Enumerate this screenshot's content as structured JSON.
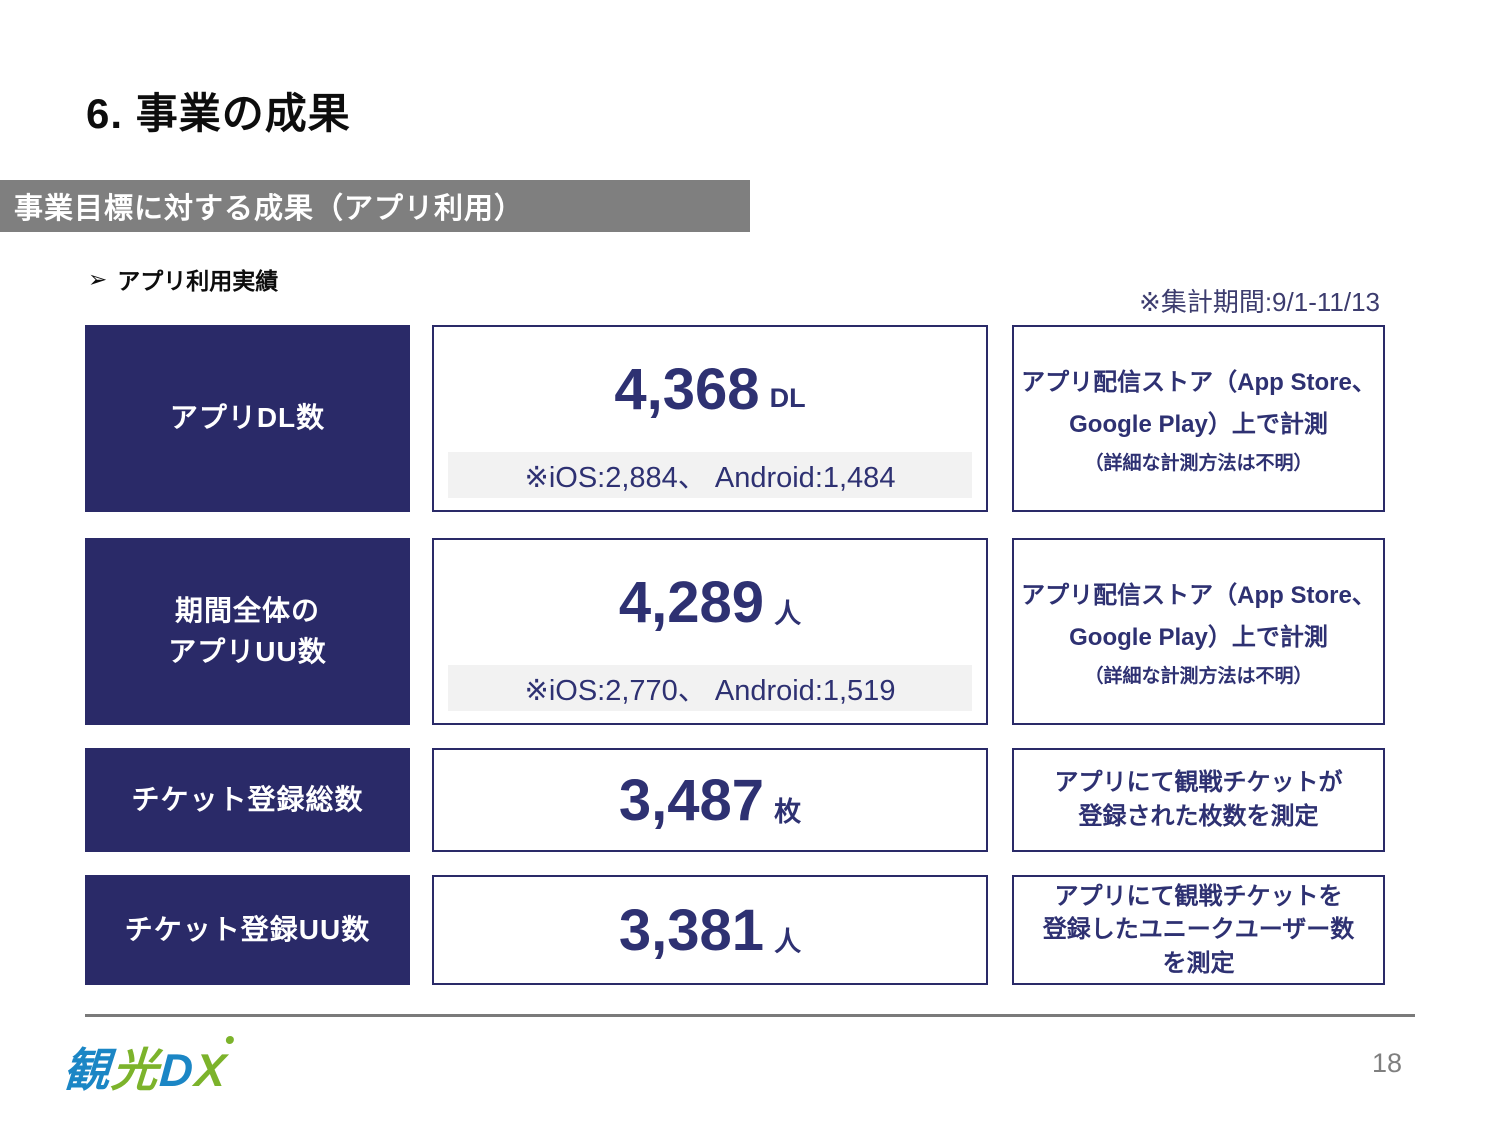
{
  "slide": {
    "title": "6. 事業の成果",
    "section_banner": "事業目標に対する成果（アプリ利用）",
    "bullet_marker": "➢",
    "bullet_label": "アプリ利用実績",
    "period_note": "※集計期間:9/1-11/13",
    "page_number": "18"
  },
  "logo": {
    "char1": "観",
    "char2": "光",
    "char3": "D",
    "char4": "X"
  },
  "colors": {
    "navy_box": "#2a2a68",
    "value_text": "#2e3172",
    "banner_gray": "#7f7f7f",
    "strip_gray": "#f2f2f2",
    "logo_blue": "#1b86c5",
    "logo_green": "#7cb32b"
  },
  "table": {
    "rows": [
      {
        "label_line1": "アプリDL数",
        "value": "4,368",
        "unit": "DL",
        "breakdown": "※iOS:2,884、 Android:1,484",
        "desc_line1": "アプリ配信ストア（App Store、",
        "desc_line2": "Google Play）上で計測",
        "desc_sub": "（詳細な計測方法は不明）"
      },
      {
        "label_line1": "期間全体の",
        "label_line2": "アプリUU数",
        "value": "4,289",
        "unit": "人",
        "breakdown": "※iOS:2,770、 Android:1,519",
        "desc_line1": "アプリ配信ストア（App Store、",
        "desc_line2": "Google Play）上で計測",
        "desc_sub": "（詳細な計測方法は不明）"
      },
      {
        "label_line1": "チケット登録総数",
        "value": "3,487",
        "unit": "枚",
        "desc_line1": "アプリにて観戦チケットが",
        "desc_line2": "登録された枚数を測定"
      },
      {
        "label_line1": "チケット登録UU数",
        "value": "3,381",
        "unit": "人",
        "desc_line1": "アプリにて観戦チケットを",
        "desc_line2": "登録したユニークユーザー数",
        "desc_line3": "を測定"
      }
    ]
  }
}
